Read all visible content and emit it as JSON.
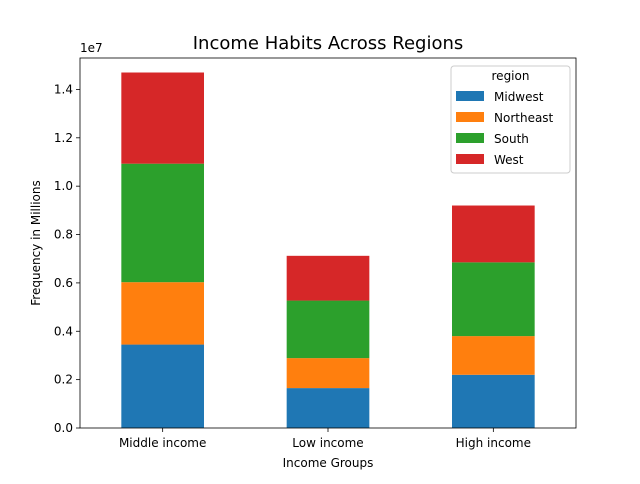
{
  "chart_data": {
    "type": "bar",
    "stacked": true,
    "title": "Income Habits Across Regions",
    "xlabel": "Income Groups",
    "ylabel": "Frequency in Millions",
    "y_offset_label": "1e7",
    "categories": [
      "Middle income",
      "Low income",
      "High income"
    ],
    "ylim": [
      0,
      1.53
    ],
    "yticks": [
      "0.0",
      "0.2",
      "0.4",
      "0.6",
      "0.8",
      "1.0",
      "1.2",
      "1.4"
    ],
    "legend": {
      "title": "region",
      "placement": "upper right"
    },
    "series": [
      {
        "name": "Midwest",
        "color": "#1f77b4",
        "values": [
          0.345,
          0.165,
          0.22
        ]
      },
      {
        "name": "Northeast",
        "color": "#ff7f0e",
        "values": [
          0.258,
          0.124,
          0.16
        ]
      },
      {
        "name": "South",
        "color": "#2ca02c",
        "values": [
          0.49,
          0.238,
          0.305
        ]
      },
      {
        "name": "West",
        "color": "#d62728",
        "values": [
          0.377,
          0.185,
          0.235
        ]
      }
    ]
  }
}
